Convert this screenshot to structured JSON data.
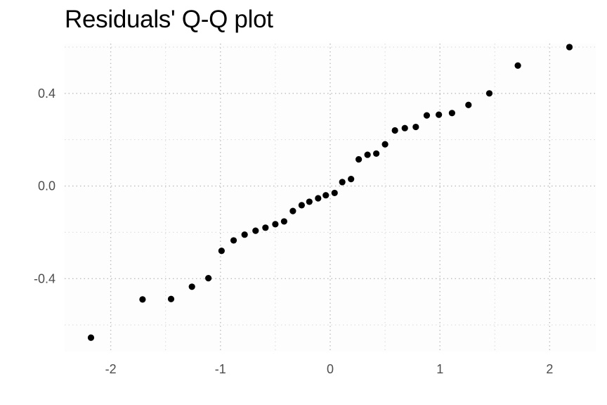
{
  "chart_data": {
    "type": "scatter",
    "title": "Residuals' Q-Q plot",
    "xlabel": "",
    "ylabel": "",
    "xlim": [
      -2.42,
      2.42
    ],
    "ylim": [
      -0.715,
      0.615
    ],
    "grid": true,
    "x_ticks": [
      -2,
      -1,
      0,
      1,
      2
    ],
    "x_tick_labels": [
      "-2",
      "-1",
      "0",
      "1",
      "2"
    ],
    "y_ticks": [
      -0.4,
      0.0,
      0.4
    ],
    "y_tick_labels": [
      "-0.4",
      "0.0",
      "0.4"
    ],
    "point_color": "#000000",
    "panel_color": "#fdfdfd",
    "points": [
      {
        "x": -2.18,
        "y": -0.655
      },
      {
        "x": -1.71,
        "y": -0.49
      },
      {
        "x": -1.45,
        "y": -0.488
      },
      {
        "x": -1.26,
        "y": -0.435
      },
      {
        "x": -1.11,
        "y": -0.398
      },
      {
        "x": -0.99,
        "y": -0.28
      },
      {
        "x": -0.88,
        "y": -0.235
      },
      {
        "x": -0.78,
        "y": -0.21
      },
      {
        "x": -0.68,
        "y": -0.193
      },
      {
        "x": -0.59,
        "y": -0.18
      },
      {
        "x": -0.5,
        "y": -0.165
      },
      {
        "x": -0.42,
        "y": -0.153
      },
      {
        "x": -0.34,
        "y": -0.108
      },
      {
        "x": -0.26,
        "y": -0.083
      },
      {
        "x": -0.19,
        "y": -0.068
      },
      {
        "x": -0.11,
        "y": -0.053
      },
      {
        "x": -0.04,
        "y": -0.04
      },
      {
        "x": 0.04,
        "y": -0.03
      },
      {
        "x": 0.11,
        "y": 0.017
      },
      {
        "x": 0.19,
        "y": 0.03
      },
      {
        "x": 0.26,
        "y": 0.115
      },
      {
        "x": 0.34,
        "y": 0.135
      },
      {
        "x": 0.42,
        "y": 0.14
      },
      {
        "x": 0.5,
        "y": 0.18
      },
      {
        "x": 0.59,
        "y": 0.24
      },
      {
        "x": 0.68,
        "y": 0.25
      },
      {
        "x": 0.78,
        "y": 0.255
      },
      {
        "x": 0.88,
        "y": 0.305
      },
      {
        "x": 0.99,
        "y": 0.308
      },
      {
        "x": 1.11,
        "y": 0.315
      },
      {
        "x": 1.26,
        "y": 0.35
      },
      {
        "x": 1.45,
        "y": 0.4
      },
      {
        "x": 1.71,
        "y": 0.52
      },
      {
        "x": 2.18,
        "y": 0.6
      }
    ]
  }
}
